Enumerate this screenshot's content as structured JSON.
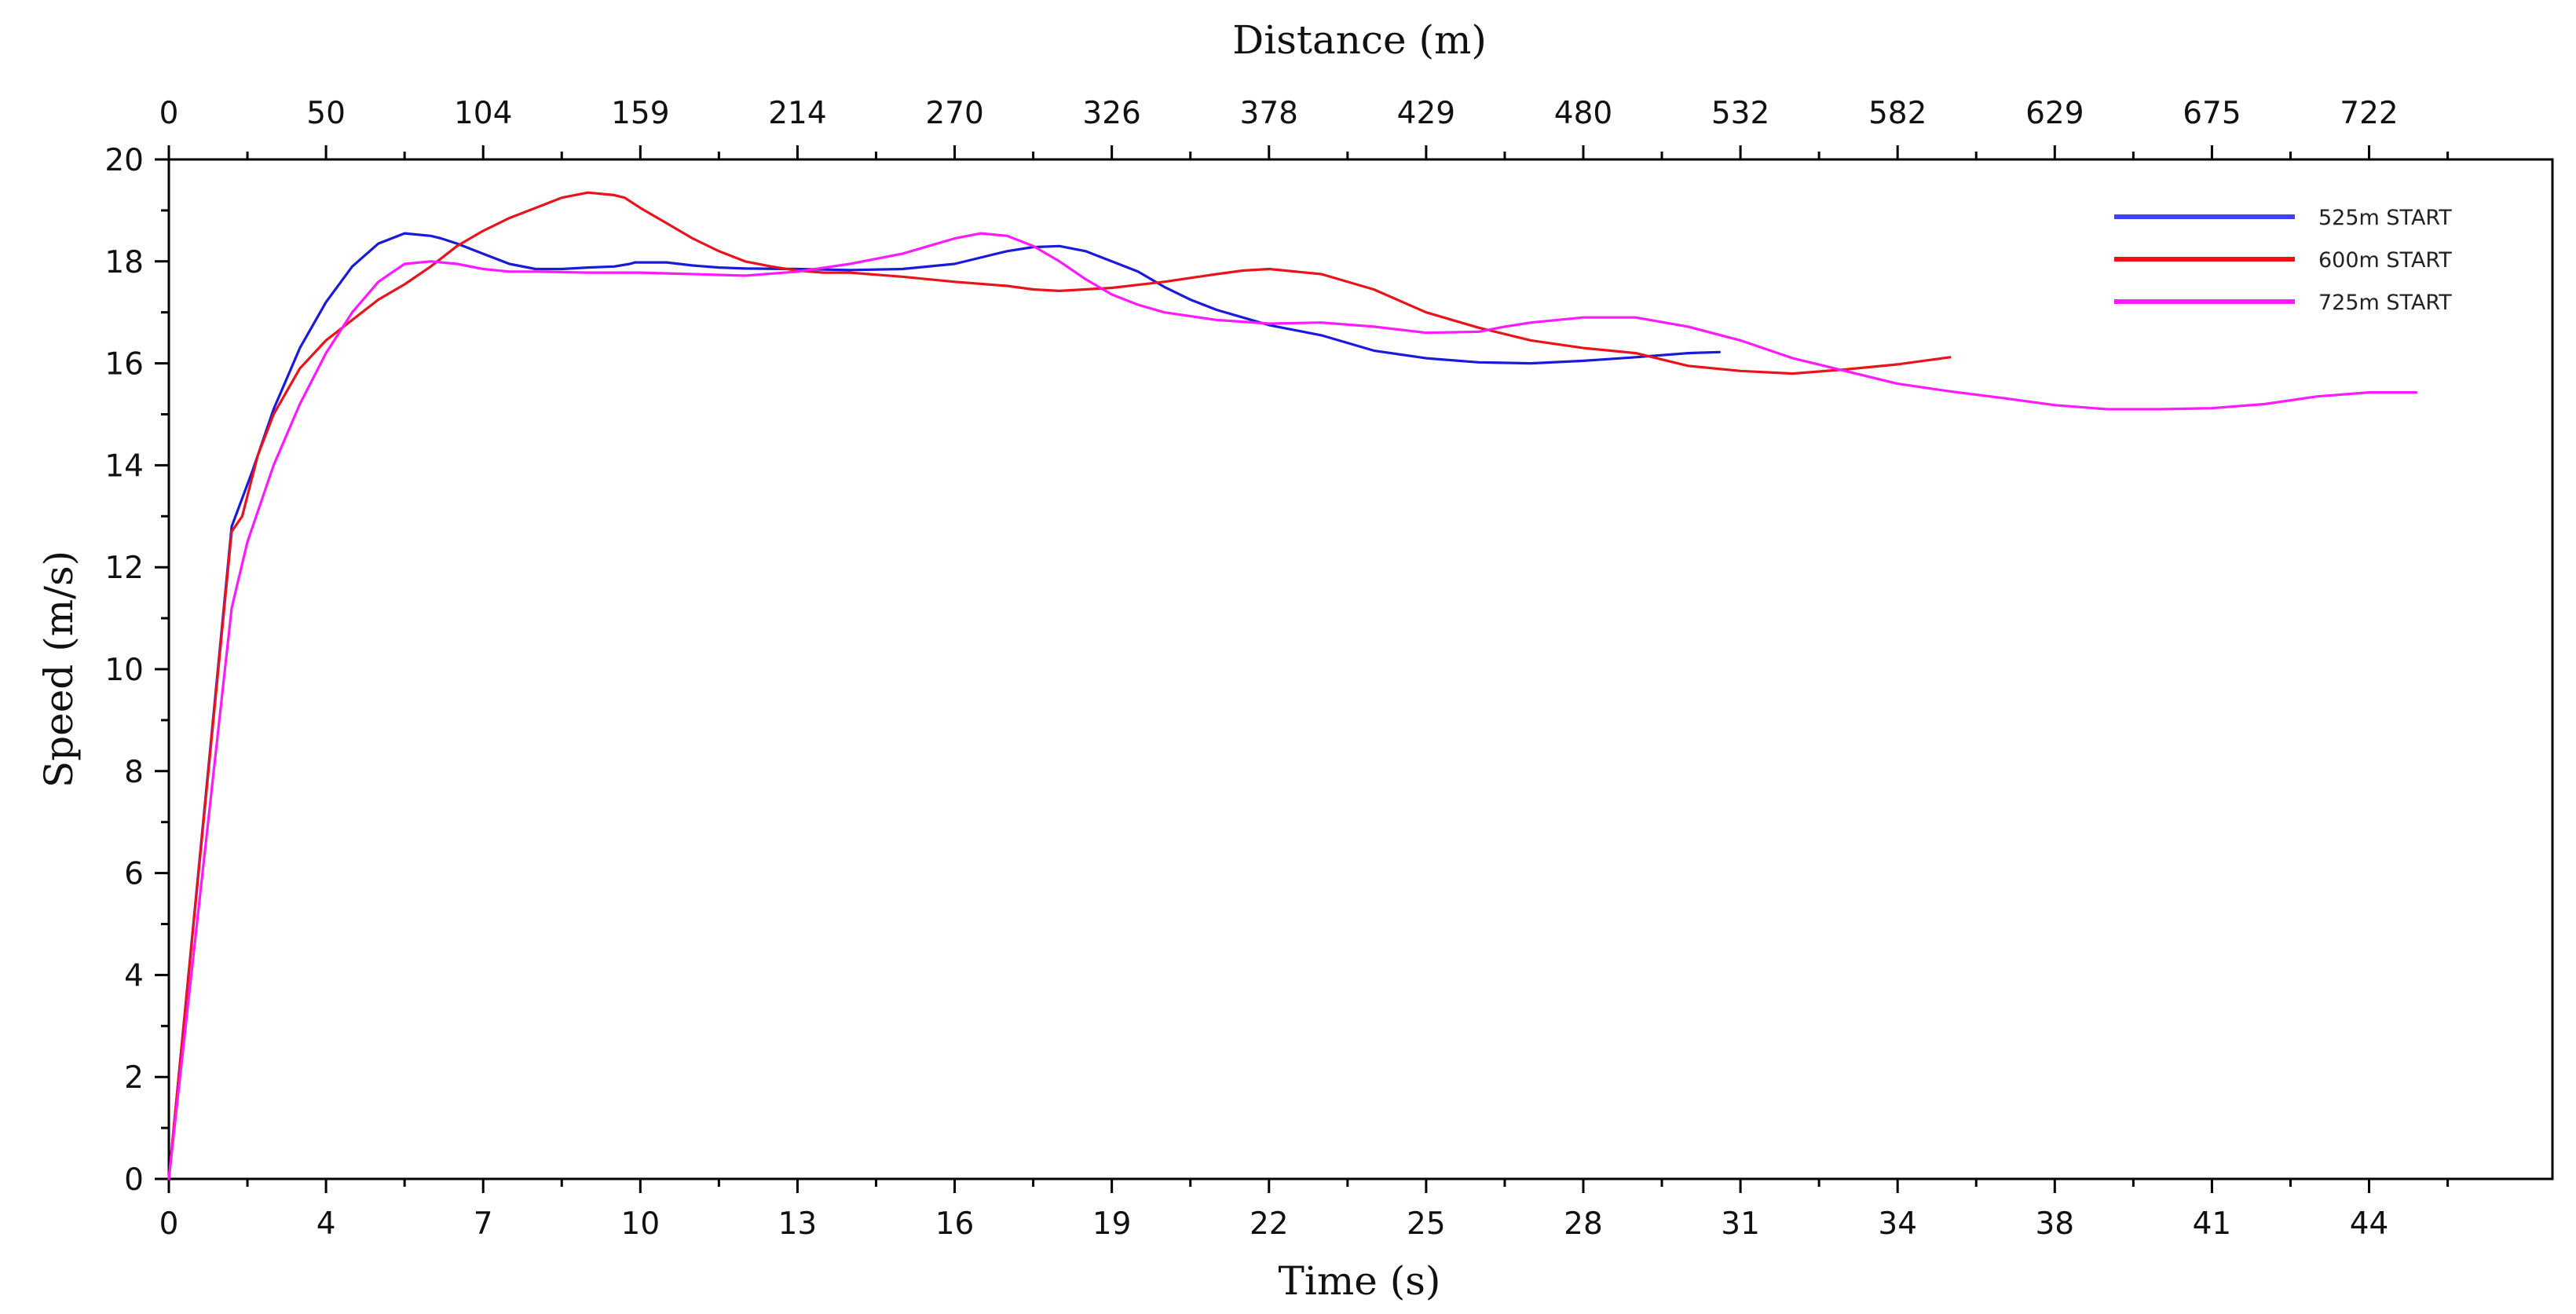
{
  "chart_data": {
    "type": "line",
    "title": "",
    "xlabel": "Time (s)",
    "ylabel": "Speed (m/s)",
    "x2label": "Distance (m)",
    "xlim": [
      0,
      45.5
    ],
    "ylim": [
      0,
      20
    ],
    "x_ticks": [
      0,
      3.0,
      6.0,
      9.0,
      12.0,
      15.0,
      18.0,
      21.0,
      24.0,
      27.0,
      30.0,
      33.0,
      36.0,
      39.0,
      42.0
    ],
    "x_tick_labels": [
      "0",
      "4",
      "7",
      "10",
      "13",
      "16",
      "19",
      "22",
      "25",
      "28",
      "31",
      "34",
      "38",
      "41",
      "44"
    ],
    "x2_tick_labels": [
      "0",
      "50",
      "104",
      "159",
      "214",
      "270",
      "326",
      "378",
      "429",
      "480",
      "532",
      "582",
      "629",
      "675",
      "722"
    ],
    "y_ticks": [
      0,
      2,
      4,
      6,
      8,
      10,
      12,
      14,
      16,
      18,
      20
    ],
    "y_tick_labels": [
      "0",
      "2",
      "4",
      "6",
      "8",
      "10",
      "12",
      "14",
      "16",
      "18",
      "20"
    ],
    "legend": {
      "position": "top-right"
    },
    "series": [
      {
        "name": "525m START",
        "color": "#1a1adb",
        "legend_color": "#4040ff",
        "x": [
          0,
          1.2,
          1.6,
          2.0,
          2.5,
          3.0,
          3.5,
          4.0,
          4.5,
          5.0,
          5.2,
          5.5,
          6.0,
          6.5,
          7.0,
          7.5,
          8.0,
          8.5,
          8.8,
          8.9,
          9.5,
          10.0,
          10.5,
          11.0,
          12.0,
          13.0,
          14.0,
          15.0,
          16.0,
          16.5,
          17.0,
          17.5,
          18.0,
          18.5,
          19.0,
          19.5,
          20.0,
          20.5,
          21.0,
          22.0,
          23.0,
          24.0,
          25.0,
          26.0,
          27.0,
          28.0,
          29.0,
          29.6
        ],
        "y": [
          0,
          12.8,
          13.9,
          15.1,
          16.3,
          17.2,
          17.9,
          18.35,
          18.55,
          18.5,
          18.45,
          18.35,
          18.15,
          17.95,
          17.85,
          17.85,
          17.88,
          17.9,
          17.95,
          17.98,
          17.98,
          17.92,
          17.88,
          17.86,
          17.85,
          17.83,
          17.85,
          17.95,
          18.2,
          18.28,
          18.3,
          18.2,
          18.0,
          17.8,
          17.5,
          17.25,
          17.05,
          16.9,
          16.75,
          16.55,
          16.25,
          16.1,
          16.02,
          16.0,
          16.05,
          16.12,
          16.2,
          16.22
        ]
      },
      {
        "name": "600m START",
        "color": "#e8141c",
        "legend_color": "#e8141c",
        "x": [
          0,
          1.2,
          1.4,
          1.7,
          2.0,
          2.5,
          3.0,
          3.5,
          4.0,
          4.5,
          5.0,
          5.5,
          6.0,
          6.5,
          7.0,
          7.5,
          8.0,
          8.5,
          8.7,
          9.0,
          9.5,
          10.0,
          10.5,
          11.0,
          11.5,
          12.0,
          12.5,
          13.0,
          14.0,
          15.0,
          16.0,
          16.5,
          17.0,
          18.0,
          19.0,
          20.0,
          20.5,
          21.0,
          22.0,
          23.0,
          24.0,
          25.0,
          26.0,
          27.0,
          28.0,
          29.0,
          30.0,
          31.0,
          32.0,
          33.0,
          34.0
        ],
        "y": [
          0,
          12.7,
          13.0,
          14.2,
          15.0,
          15.9,
          16.45,
          16.85,
          17.25,
          17.55,
          17.9,
          18.3,
          18.6,
          18.85,
          19.05,
          19.25,
          19.35,
          19.3,
          19.25,
          19.05,
          18.75,
          18.45,
          18.2,
          18.0,
          17.9,
          17.82,
          17.78,
          17.78,
          17.7,
          17.6,
          17.52,
          17.45,
          17.42,
          17.48,
          17.6,
          17.75,
          17.82,
          17.85,
          17.75,
          17.45,
          17.0,
          16.7,
          16.45,
          16.3,
          16.2,
          15.95,
          15.85,
          15.8,
          15.88,
          15.98,
          16.12
        ]
      },
      {
        "name": "725m START",
        "color": "#ff1aff",
        "legend_color": "#ff1aff",
        "x": [
          0,
          1.2,
          1.5,
          2.0,
          2.5,
          3.0,
          3.5,
          4.0,
          4.5,
          5.0,
          5.5,
          6.0,
          6.5,
          7.0,
          8.0,
          9.0,
          10.0,
          11.0,
          12.0,
          13.0,
          14.0,
          14.5,
          15.0,
          15.5,
          16.0,
          16.5,
          17.0,
          17.5,
          18.0,
          18.5,
          19.0,
          20.0,
          21.0,
          22.0,
          23.0,
          24.0,
          25.0,
          25.5,
          26.0,
          27.0,
          28.0,
          29.0,
          30.0,
          31.0,
          32.0,
          33.0,
          34.0,
          35.0,
          36.0,
          37.0,
          38.0,
          39.0,
          40.0,
          41.0,
          42.0,
          42.9
        ],
        "y": [
          0,
          11.2,
          12.5,
          14.0,
          15.2,
          16.2,
          17.0,
          17.6,
          17.95,
          18.0,
          17.95,
          17.85,
          17.8,
          17.8,
          17.78,
          17.78,
          17.75,
          17.72,
          17.8,
          17.95,
          18.15,
          18.3,
          18.45,
          18.55,
          18.5,
          18.3,
          18.0,
          17.65,
          17.35,
          17.15,
          17.0,
          16.85,
          16.78,
          16.8,
          16.72,
          16.6,
          16.62,
          16.72,
          16.8,
          16.9,
          16.9,
          16.72,
          16.45,
          16.1,
          15.85,
          15.6,
          15.45,
          15.32,
          15.18,
          15.1,
          15.1,
          15.12,
          15.2,
          15.35,
          15.43,
          15.43
        ]
      }
    ]
  }
}
